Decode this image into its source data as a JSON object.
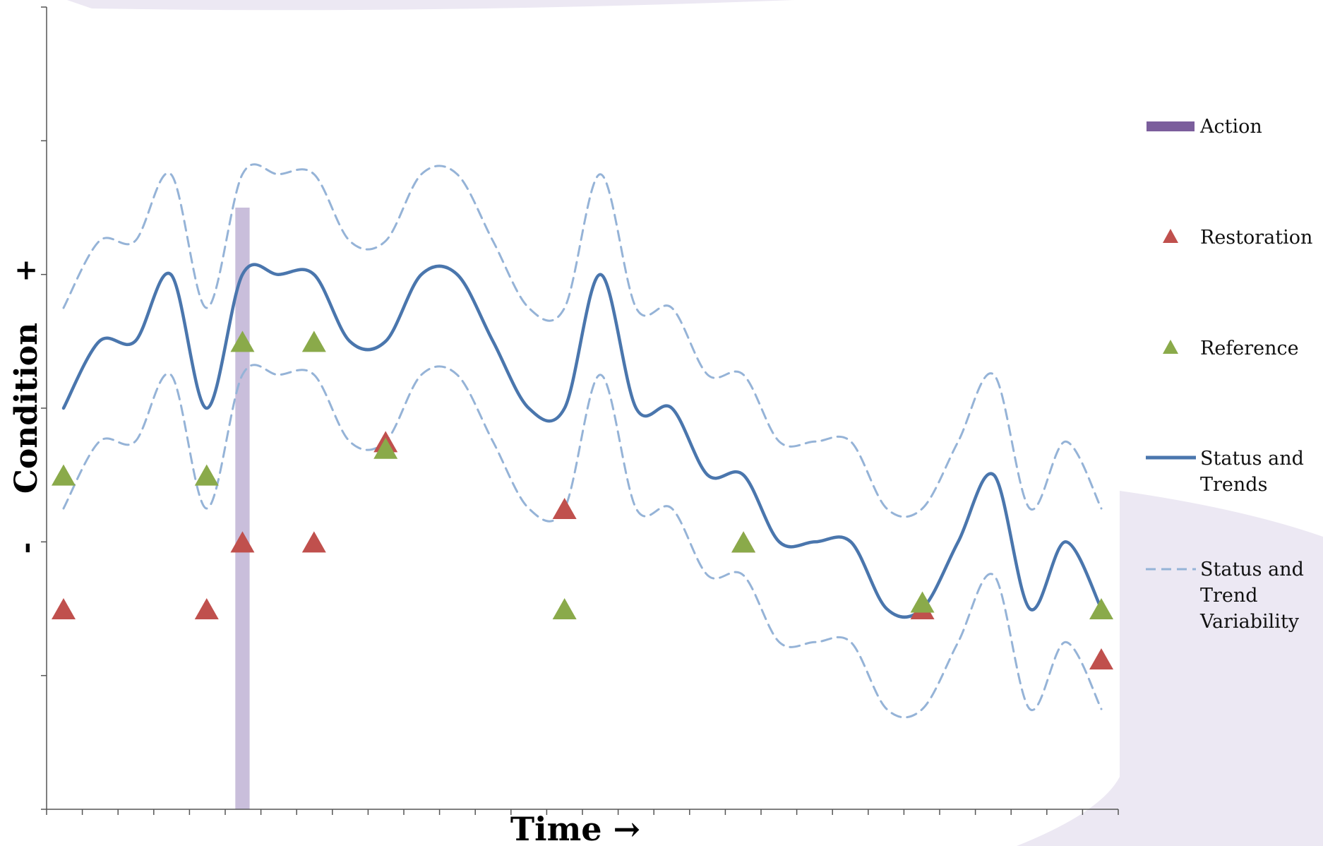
{
  "chart_data": {
    "type": "line",
    "xlabel": "Time →",
    "ylabel": "Condition",
    "y_tick_labels": {
      "plus": "+",
      "minus": "-"
    },
    "xlim": [
      0,
      30
    ],
    "ylim": [
      -6,
      6
    ],
    "grid": false,
    "legend_position": "right",
    "colors": {
      "action": "#c9bedb",
      "action_legend": "#7b5e9c",
      "restoration": "#c0504d",
      "reference": "#8aaa4a",
      "status": "#4a76ad",
      "variability": "#95b3d7",
      "background_swoosh": "#ece8f3"
    },
    "series": [
      {
        "name": "Status and Trends",
        "style": "solid",
        "points": [
          [
            0,
            0
          ],
          [
            1,
            1
          ],
          [
            2,
            1
          ],
          [
            3,
            2
          ],
          [
            4,
            0
          ],
          [
            5,
            2
          ],
          [
            6,
            2
          ],
          [
            7,
            2
          ],
          [
            8,
            1
          ],
          [
            9,
            1
          ],
          [
            10,
            2
          ],
          [
            11,
            2
          ],
          [
            12,
            1
          ],
          [
            13,
            0
          ],
          [
            14,
            0
          ],
          [
            15,
            2
          ],
          [
            16,
            0
          ],
          [
            17,
            0
          ],
          [
            18,
            -1
          ],
          [
            19,
            -1
          ],
          [
            20,
            -2
          ],
          [
            21,
            -2
          ],
          [
            22,
            -2
          ],
          [
            23,
            -3
          ],
          [
            24,
            -3
          ],
          [
            25,
            -2
          ],
          [
            26,
            -1
          ],
          [
            27,
            -3
          ],
          [
            28,
            -2
          ],
          [
            29,
            -3
          ]
        ]
      },
      {
        "name": "Status and Trend Variability",
        "style": "dashed",
        "band": "upper",
        "points": [
          [
            0,
            1.5
          ],
          [
            1,
            2.5
          ],
          [
            2,
            2.5
          ],
          [
            3,
            3.5
          ],
          [
            4,
            1.5
          ],
          [
            5,
            3.5
          ],
          [
            6,
            3.5
          ],
          [
            7,
            3.5
          ],
          [
            8,
            2.5
          ],
          [
            9,
            2.5
          ],
          [
            10,
            3.5
          ],
          [
            11,
            3.5
          ],
          [
            12,
            2.5
          ],
          [
            13,
            1.5
          ],
          [
            14,
            1.5
          ],
          [
            15,
            3.5
          ],
          [
            16,
            1.5
          ],
          [
            17,
            1.5
          ],
          [
            18,
            0.5
          ],
          [
            19,
            0.5
          ],
          [
            20,
            -0.5
          ],
          [
            21,
            -0.5
          ],
          [
            22,
            -0.5
          ],
          [
            23,
            -1.5
          ],
          [
            24,
            -1.5
          ],
          [
            25,
            -0.5
          ],
          [
            26,
            0.5
          ],
          [
            27,
            -1.5
          ],
          [
            28,
            -0.5
          ],
          [
            29,
            -1.5
          ]
        ]
      },
      {
        "name": "Status and Trend Variability",
        "style": "dashed",
        "band": "lower",
        "points": [
          [
            0,
            -1.5
          ],
          [
            1,
            -0.5
          ],
          [
            2,
            -0.5
          ],
          [
            3,
            0.5
          ],
          [
            4,
            -1.5
          ],
          [
            5,
            0.5
          ],
          [
            6,
            0.5
          ],
          [
            7,
            0.5
          ],
          [
            8,
            -0.5
          ],
          [
            9,
            -0.5
          ],
          [
            10,
            0.5
          ],
          [
            11,
            0.5
          ],
          [
            12,
            -0.5
          ],
          [
            13,
            -1.5
          ],
          [
            14,
            -1.5
          ],
          [
            15,
            0.5
          ],
          [
            16,
            -1.5
          ],
          [
            17,
            -1.5
          ],
          [
            18,
            -2.5
          ],
          [
            19,
            -2.5
          ],
          [
            20,
            -3.5
          ],
          [
            21,
            -3.5
          ],
          [
            22,
            -3.5
          ],
          [
            23,
            -4.5
          ],
          [
            24,
            -4.5
          ],
          [
            25,
            -3.5
          ],
          [
            26,
            -2.5
          ],
          [
            27,
            -4.5
          ],
          [
            28,
            -3.5
          ],
          [
            29,
            -4.5
          ]
        ]
      }
    ],
    "restoration": [
      [
        0,
        -3
      ],
      [
        4,
        -3
      ],
      [
        5,
        -2
      ],
      [
        7,
        -2
      ],
      [
        9,
        -0.5
      ],
      [
        14,
        -1.5
      ],
      [
        19,
        -2
      ],
      [
        24,
        -3
      ],
      [
        29,
        -3.75
      ]
    ],
    "reference": [
      [
        0,
        -1
      ],
      [
        4,
        -1
      ],
      [
        5,
        1
      ],
      [
        7,
        1
      ],
      [
        9,
        -0.6
      ],
      [
        14,
        -3
      ],
      [
        19,
        -2
      ],
      [
        24,
        -2.9
      ],
      [
        29,
        -3
      ]
    ],
    "action": {
      "x": 5,
      "y_top": 3,
      "y_bottom": -6,
      "width": 0.4
    },
    "legend": [
      {
        "key": "action",
        "label": "Action"
      },
      {
        "key": "restoration",
        "label": "Restoration"
      },
      {
        "key": "reference",
        "label": "Reference"
      },
      {
        "key": "status",
        "label_lines": [
          "Status and",
          "Trends"
        ]
      },
      {
        "key": "variability",
        "label_lines": [
          "Status and",
          "Trend",
          "Variability"
        ]
      }
    ]
  }
}
